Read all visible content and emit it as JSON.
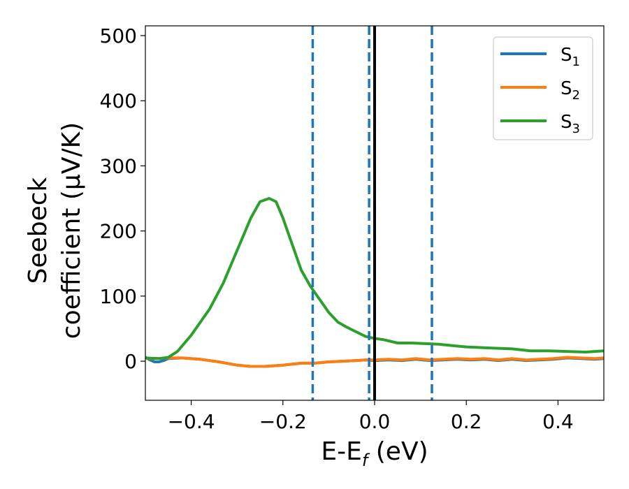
{
  "chart_data": {
    "type": "line",
    "title": "",
    "xlabel": "E-E",
    "xlabel_sub": "f",
    "xlabel_tail": " (eV)",
    "ylabel_line1": "Seebeck",
    "ylabel_line2": "coefficient  (μV/K)",
    "xlim": [
      -0.5,
      0.5
    ],
    "ylim": [
      -60,
      515
    ],
    "xticks": [
      -0.4,
      -0.2,
      0.0,
      0.2,
      0.4
    ],
    "xtick_labels": [
      "−0.4",
      "−0.2",
      "0.0",
      "0.2",
      "0.4"
    ],
    "yticks": [
      0,
      100,
      200,
      300,
      400,
      500
    ],
    "ytick_labels": [
      "0",
      "100",
      "200",
      "300",
      "400",
      "500"
    ],
    "grid": false,
    "legend_position": "top-right",
    "vertical_lines": [
      {
        "x": -0.135,
        "style": "dashed",
        "color": "#1f77b4"
      },
      {
        "x": -0.012,
        "style": "dashed",
        "color": "#1f77b4"
      },
      {
        "x": 0.0,
        "style": "solid",
        "color": "#000000"
      },
      {
        "x": 0.125,
        "style": "dashed",
        "color": "#1f77b4"
      }
    ],
    "series": [
      {
        "name": "S",
        "sub": "1",
        "color": "#1f77b4",
        "x": [
          -0.5,
          -0.49,
          -0.48,
          -0.47,
          -0.46,
          -0.45,
          -0.42,
          -0.38,
          -0.34,
          -0.3,
          -0.27,
          -0.24,
          -0.2,
          -0.16,
          -0.13,
          -0.1,
          -0.07,
          -0.04,
          -0.02,
          0.0,
          0.03,
          0.06,
          0.09,
          0.12,
          0.15,
          0.18,
          0.21,
          0.24,
          0.27,
          0.3,
          0.33,
          0.36,
          0.39,
          0.42,
          0.45,
          0.48,
          0.5
        ],
        "y": [
          6,
          2,
          -1,
          -1,
          1,
          4,
          5,
          3,
          -1,
          -6,
          -8,
          -8,
          -6,
          -3,
          -3,
          -1,
          0,
          1,
          2,
          1,
          2,
          1,
          3,
          1,
          2,
          3,
          2,
          3,
          1,
          3,
          1,
          2,
          3,
          5,
          4,
          3,
          4
        ]
      },
      {
        "name": "S",
        "sub": "2",
        "color": "#ff7f0e",
        "x": [
          -0.5,
          -0.49,
          -0.48,
          -0.47,
          -0.46,
          -0.45,
          -0.42,
          -0.38,
          -0.34,
          -0.3,
          -0.27,
          -0.24,
          -0.2,
          -0.16,
          -0.13,
          -0.1,
          -0.07,
          -0.04,
          -0.02,
          0.0,
          0.03,
          0.06,
          0.09,
          0.12,
          0.15,
          0.18,
          0.21,
          0.24,
          0.27,
          0.3,
          0.33,
          0.36,
          0.39,
          0.42,
          0.45,
          0.48,
          0.5
        ],
        "y": [
          5,
          4,
          4,
          4,
          5,
          5,
          5,
          3,
          -1,
          -6,
          -8,
          -8,
          -6,
          -3,
          -3,
          -1,
          0,
          1,
          2,
          2,
          3,
          2,
          4,
          2,
          3,
          4,
          3,
          4,
          2,
          4,
          2,
          3,
          4,
          6,
          5,
          4,
          5
        ]
      },
      {
        "name": "S",
        "sub": "3",
        "color": "#2ca02c",
        "x": [
          -0.5,
          -0.47,
          -0.45,
          -0.43,
          -0.4,
          -0.36,
          -0.33,
          -0.3,
          -0.27,
          -0.25,
          -0.23,
          -0.215,
          -0.2,
          -0.18,
          -0.16,
          -0.14,
          -0.12,
          -0.1,
          -0.08,
          -0.06,
          -0.04,
          -0.02,
          0.0,
          0.02,
          0.05,
          0.08,
          0.11,
          0.14,
          0.17,
          0.2,
          0.23,
          0.26,
          0.3,
          0.34,
          0.38,
          0.42,
          0.46,
          0.5
        ],
        "y": [
          5,
          4,
          6,
          15,
          40,
          80,
          120,
          170,
          220,
          245,
          250,
          245,
          220,
          180,
          140,
          115,
          95,
          75,
          60,
          52,
          45,
          38,
          35,
          33,
          28,
          28,
          27,
          26,
          24,
          22,
          21,
          20,
          19,
          16,
          16,
          15,
          14,
          16
        ]
      }
    ]
  }
}
